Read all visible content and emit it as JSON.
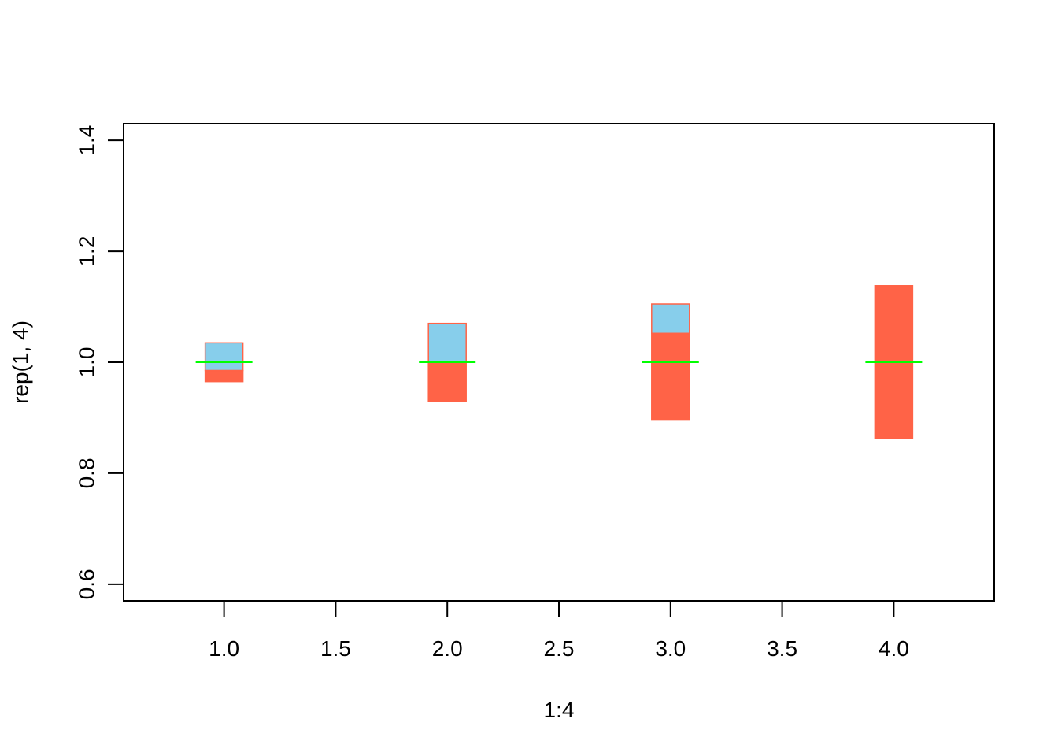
{
  "chart_data": {
    "type": "bar",
    "title": "",
    "xlabel": "1:4",
    "ylabel": "rep(1, 4)",
    "xlim": [
      0.55,
      4.45
    ],
    "ylim": [
      0.57,
      1.43
    ],
    "x_ticks": [
      "1.0",
      "1.5",
      "2.0",
      "2.5",
      "3.0",
      "3.5",
      "4.0"
    ],
    "x_tick_values": [
      1.0,
      1.5,
      2.0,
      2.5,
      3.0,
      3.5,
      4.0
    ],
    "y_ticks": [
      "0.6",
      "0.8",
      "1.0",
      "1.2",
      "1.4"
    ],
    "y_tick_values": [
      0.6,
      0.8,
      1.0,
      1.2,
      1.4
    ],
    "grid": false,
    "series": [
      {
        "color": "#87CEEB",
        "boxes": [
          {
            "x": 1,
            "low": 0.985,
            "high": 1.035
          },
          {
            "x": 2,
            "low": 1.0,
            "high": 1.07
          },
          {
            "x": 3,
            "low": 1.052,
            "high": 1.105
          },
          {
            "x": 4,
            "low": 1.138,
            "high": 1.138
          }
        ]
      },
      {
        "color": "#FF6347",
        "boxes": [
          {
            "x": 1,
            "low": 0.965,
            "high": 0.985
          },
          {
            "x": 2,
            "low": 0.93,
            "high": 1.0
          },
          {
            "x": 3,
            "low": 0.897,
            "high": 1.052
          },
          {
            "x": 4,
            "low": 0.862,
            "high": 1.138
          }
        ]
      }
    ],
    "reference_lines": {
      "color": "#00FF00",
      "items": [
        {
          "x": 1,
          "y": 1.0
        },
        {
          "x": 2,
          "y": 1.0
        },
        {
          "x": 3,
          "y": 1.0
        },
        {
          "x": 4,
          "y": 1.0
        }
      ]
    }
  }
}
